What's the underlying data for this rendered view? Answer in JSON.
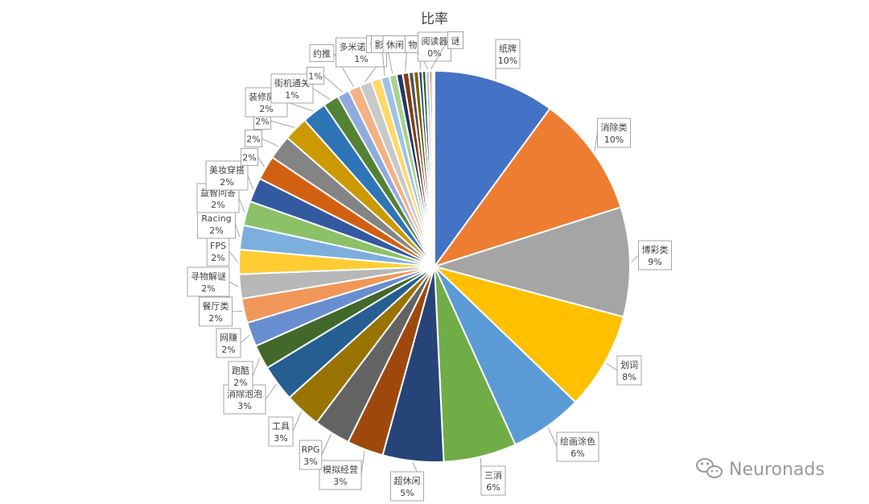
{
  "chart_data": {
    "type": "pie",
    "title": "比率",
    "slices": [
      {
        "label": "纸牌",
        "value": 10,
        "display": "10%",
        "color": "#4472C4"
      },
      {
        "label": "消除类",
        "value": 10,
        "display": "10%",
        "color": "#ED7D31"
      },
      {
        "label": "博彩类",
        "value": 9,
        "display": "9%",
        "color": "#A5A5A5"
      },
      {
        "label": "划词",
        "value": 8,
        "display": "8%",
        "color": "#FFC000"
      },
      {
        "label": "绘画涂色",
        "value": 6,
        "display": "6%",
        "color": "#5B9BD5"
      },
      {
        "label": "三消",
        "value": 6,
        "display": "6%",
        "color": "#70AD47"
      },
      {
        "label": "超休闲",
        "value": 5,
        "display": "5%",
        "color": "#264478"
      },
      {
        "label": "模拟经营",
        "value": 3,
        "display": "3%",
        "color": "#9E480E"
      },
      {
        "label": "RPG",
        "value": 3,
        "display": "3%",
        "color": "#636363"
      },
      {
        "label": "工具",
        "value": 3,
        "display": "3%",
        "color": "#997300"
      },
      {
        "label": "消除泡泡",
        "value": 3,
        "display": "3%",
        "color": "#255E91"
      },
      {
        "label": "跑酷",
        "value": 2,
        "display": "2%",
        "color": "#43682B"
      },
      {
        "label": "网赚",
        "value": 2,
        "display": "2%",
        "color": "#698ED0"
      },
      {
        "label": "餐厅类",
        "value": 2,
        "display": "2%",
        "color": "#F1975A"
      },
      {
        "label": "寻物解谜",
        "value": 2,
        "display": "2%",
        "color": "#B7B7B7"
      },
      {
        "label": "FPS",
        "value": 2,
        "display": "2%",
        "color": "#FFCD33"
      },
      {
        "label": "Racing",
        "value": 2,
        "display": "2%",
        "color": "#7CAFDD"
      },
      {
        "label": "益智问答",
        "value": 2,
        "display": "2%",
        "color": "#8CC168"
      },
      {
        "label": "美妆穿搭",
        "value": 2,
        "display": "2%",
        "color": "#335AA1"
      },
      {
        "label": "",
        "value": 2,
        "display": "2%",
        "color": "#D26012"
      },
      {
        "label": "",
        "value": 2,
        "display": "2%",
        "color": "#848484"
      },
      {
        "label": "",
        "value": 2,
        "display": "2%",
        "color": "#CC9A00"
      },
      {
        "label": "装修房子",
        "value": 2,
        "display": "2%",
        "color": "#2E75B6"
      },
      {
        "label": "街机通关",
        "value": 1.3,
        "display": "1%",
        "color": "#548235"
      },
      {
        "label": "",
        "value": 1,
        "display": "1%",
        "color": "#8FAADC"
      },
      {
        "label": "约推",
        "value": 1,
        "display": "",
        "color": "#F4B183"
      },
      {
        "label": "多米诺骨牌",
        "value": 1,
        "display": "1%",
        "color": "#C9C9C9"
      },
      {
        "label": "",
        "value": 0.8,
        "display": "",
        "color": "#FFD966"
      },
      {
        "label": "合",
        "value": 0.7,
        "display": "",
        "color": "#9DC3E6"
      },
      {
        "label": "影",
        "value": 0.6,
        "display": "",
        "color": "#A9D18E"
      },
      {
        "label": "",
        "value": 0.5,
        "display": "",
        "color": "#203864"
      },
      {
        "label": "休闲",
        "value": 0.5,
        "display": "",
        "color": "#843C0C"
      },
      {
        "label": "",
        "value": 0.4,
        "display": "",
        "color": "#525252"
      },
      {
        "label": "",
        "value": 0.4,
        "display": "",
        "color": "#7F6000"
      },
      {
        "label": "物",
        "value": 0.3,
        "display": "",
        "color": "#1F4E79"
      },
      {
        "label": "",
        "value": 0.3,
        "display": "",
        "color": "#385723"
      },
      {
        "label": "阅读器",
        "value": 0.3,
        "display": "0%",
        "color": "#B4C7E7"
      },
      {
        "label": "谜",
        "value": 0.2,
        "display": "",
        "color": "#C55A11"
      },
      {
        "label": "",
        "value": 0.1,
        "display": "",
        "color": "#E7E6E6"
      },
      {
        "label": "",
        "value": 0.1,
        "display": "",
        "color": "#FFE699"
      }
    ]
  },
  "watermark": {
    "text": "Neuronads",
    "icon": "wechat-icon"
  }
}
